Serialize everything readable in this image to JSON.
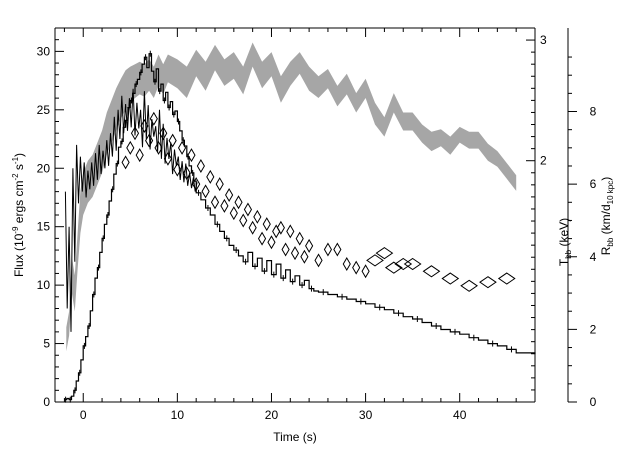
{
  "chart_data": {
    "type": "line",
    "title": "",
    "xlabel": "Time (s)",
    "ylabel_left": {
      "main": "Flux (10",
      "sup1": "-9",
      "mid": " ergs cm",
      "sup2": "-2",
      "mid2": " s",
      "sup3": "-1",
      "end": ")"
    },
    "ylabel_right1": {
      "main": "T",
      "sub": "bb",
      "end": " (keV)"
    },
    "ylabel_right2": {
      "main": "R",
      "sub": "bb",
      "mid": " (km/d",
      "sub2": "10 kpc",
      "end": ")"
    },
    "xlim": [
      -3,
      48
    ],
    "ylim_flux": [
      0,
      32
    ],
    "ylim_T": [
      0,
      3.1
    ],
    "ylim_R": [
      0,
      10.3
    ],
    "x_ticks": [
      0,
      10,
      20,
      30,
      40
    ],
    "x_tick_labels": [
      "0",
      "10",
      "20",
      "30",
      "40"
    ],
    "y_ticks_flux": [
      0,
      5,
      10,
      15,
      20,
      25,
      30
    ],
    "y_tick_labels_flux": [
      "0",
      "5",
      "10",
      "15",
      "20",
      "25",
      "30"
    ],
    "y_ticks_T": [
      2,
      3
    ],
    "y_tick_labels_T": [
      "2",
      "3"
    ],
    "y_ticks_R": [
      0,
      2,
      4,
      6,
      8
    ],
    "y_tick_labels_R": [
      "0",
      "2",
      "4",
      "6",
      "8"
    ],
    "series": [
      {
        "style": "histogram",
        "axis": "flux",
        "color": "#000000",
        "x": [
          -2,
          -1.75,
          -1.5,
          -1.25,
          -1.0,
          -0.75,
          -0.5,
          -0.25,
          0.0,
          0.25,
          0.5,
          0.75,
          1.0,
          1.25,
          1.5,
          1.75,
          2.0,
          2.25,
          2.5,
          2.75,
          3.0,
          3.25,
          3.5,
          3.75,
          4.0,
          4.25,
          4.5,
          4.75,
          5.0,
          5.25,
          5.5,
          5.75,
          6.0,
          6.25,
          6.5,
          6.75,
          7.0,
          7.25,
          7.5,
          7.75,
          8.0,
          8.25,
          8.5,
          8.75,
          9.0,
          9.25,
          9.5,
          9.75,
          10.0,
          10.25,
          10.5,
          10.75,
          11.0,
          11.25,
          11.5,
          11.75,
          12.0,
          12.5,
          13.0,
          13.5,
          14.0,
          14.5,
          15.0,
          15.5,
          16.0,
          16.5,
          17.0,
          17.5,
          18.0,
          18.5,
          19.0,
          19.5,
          20.0,
          20.5,
          21.0,
          21.5,
          22.0,
          22.5,
          23.0,
          23.5,
          24.0,
          24.5,
          25.0,
          26.0,
          27.0,
          28.0,
          29.0,
          30.0,
          31.0,
          32.0,
          33.0,
          34.0,
          35.0,
          36.0,
          37.0,
          38.0,
          39.0,
          40.0,
          41.0,
          42.0,
          43.0,
          44.0,
          45.0,
          46.0,
          48.0
        ],
        "y": [
          0.2,
          0.3,
          0.2,
          0.5,
          1.0,
          1.8,
          2.5,
          3.6,
          4.8,
          5.6,
          6.5,
          7.8,
          9.2,
          10.6,
          11.5,
          12.8,
          14.0,
          15.2,
          16.0,
          17.2,
          18.2,
          19.5,
          20.4,
          21.8,
          22.3,
          23.5,
          24.1,
          25.2,
          25.8,
          26.4,
          27.2,
          27.6,
          28.2,
          28.9,
          29.5,
          28.6,
          29.8,
          28.3,
          27.4,
          28.5,
          26.6,
          27.2,
          25.8,
          26.5,
          25.2,
          25.7,
          24.6,
          24.9,
          24.0,
          23.2,
          22.4,
          21.9,
          21.0,
          20.2,
          19.6,
          18.9,
          17.9,
          17.3,
          16.6,
          16.0,
          15.2,
          14.6,
          14.0,
          13.4,
          13.0,
          12.5,
          12.0,
          12.8,
          11.6,
          12.3,
          11.2,
          12.1,
          10.9,
          11.8,
          10.6,
          11.3,
          10.3,
          10.8,
          10.0,
          10.4,
          9.7,
          9.5,
          9.4,
          9.2,
          9.0,
          8.8,
          8.6,
          8.4,
          8.1,
          7.9,
          7.6,
          7.3,
          7.1,
          6.8,
          6.5,
          6.2,
          6.0,
          5.8,
          5.5,
          5.3,
          5.0,
          4.8,
          4.5,
          4.2,
          4.1
        ]
      },
      {
        "style": "jagged",
        "axis": "flux",
        "color": "#000000",
        "x": [
          -1.9,
          -1.7,
          -1.5,
          -1.3,
          -1.1,
          -0.9,
          -0.7,
          -0.5,
          -0.3,
          -0.1,
          0.1,
          0.3,
          0.5,
          0.7,
          0.9,
          1.1,
          1.3,
          1.5,
          1.7,
          1.9,
          2.1,
          2.3,
          2.5,
          2.7,
          2.9,
          3.1,
          3.3,
          3.5,
          3.7,
          3.9,
          4.1,
          4.3,
          4.5,
          4.7,
          4.9,
          5.1,
          5.3,
          5.5,
          5.7,
          5.9,
          6.1,
          6.3,
          6.5,
          6.7,
          6.9,
          7.1,
          7.3,
          7.5,
          7.7,
          7.9,
          8.1,
          8.3,
          8.5,
          8.7,
          8.9,
          9.1,
          9.3,
          9.5,
          9.7,
          9.9,
          10.1,
          10.3,
          10.5,
          10.7,
          10.9,
          11.1,
          11.3,
          11.5,
          11.7,
          11.9,
          12.1
        ],
        "y": [
          18.0,
          8.0,
          15.0,
          6.0,
          20.0,
          12.0,
          22.0,
          17.0,
          21.0,
          18.0,
          20.5,
          17.5,
          19.8,
          18.2,
          20.5,
          18.5,
          21.3,
          19.0,
          22.0,
          19.5,
          21.5,
          20.0,
          22.4,
          20.2,
          23.0,
          21.0,
          24.4,
          21.5,
          25.0,
          22.5,
          26.2,
          23.0,
          25.5,
          23.2,
          26.0,
          23.5,
          26.8,
          22.8,
          25.6,
          23.4,
          25.0,
          21.8,
          26.6,
          22.5,
          25.4,
          21.6,
          24.2,
          22.7,
          23.6,
          21.4,
          25.0,
          20.8,
          23.8,
          20.4,
          22.6,
          20.8,
          22.2,
          19.5,
          21.6,
          20.2,
          21.0,
          19.0,
          20.6,
          18.8,
          20.4,
          18.5,
          19.6,
          18.3,
          19.2,
          18.0,
          18.8
        ]
      },
      {
        "style": "band",
        "axis": "T",
        "color": "#a6a6a6",
        "x": [
          -1.8,
          -1.5,
          -1.2,
          -0.9,
          -0.6,
          -0.3,
          0.0,
          0.5,
          1.0,
          1.5,
          2.0,
          2.5,
          3.0,
          3.5,
          4.0,
          4.5,
          5.0,
          5.5,
          6.0,
          6.5,
          7.0,
          7.5,
          8.0,
          8.5,
          9.0,
          10.0,
          11.0,
          12.0,
          13.0,
          14.0,
          15.0,
          16.0,
          17.0,
          18.0,
          19.0,
          20.0,
          21.0,
          22.0,
          23.0,
          24.0,
          25.0,
          26.0,
          27.0,
          28.0,
          29.0,
          30.0,
          31.0,
          32.0,
          33.0,
          34.0,
          35.0,
          36.0,
          37.0,
          38.0,
          39.0,
          40.0,
          41.0,
          42.0,
          43.0,
          44.0,
          45.0,
          46.0
        ],
        "lower": [
          0.42,
          0.55,
          0.9,
          0.75,
          1.1,
          1.4,
          1.55,
          1.65,
          1.7,
          1.8,
          1.9,
          2.05,
          2.15,
          2.25,
          2.35,
          2.42,
          2.48,
          2.52,
          2.55,
          2.53,
          2.58,
          2.52,
          2.62,
          2.55,
          2.65,
          2.6,
          2.52,
          2.7,
          2.58,
          2.75,
          2.62,
          2.68,
          2.55,
          2.78,
          2.6,
          2.7,
          2.48,
          2.62,
          2.72,
          2.58,
          2.52,
          2.6,
          2.45,
          2.55,
          2.4,
          2.52,
          2.3,
          2.2,
          2.4,
          2.25,
          2.25,
          2.15,
          2.08,
          2.12,
          2.05,
          2.15,
          2.1,
          2.1,
          2.0,
          1.95,
          1.85,
          1.75
        ],
        "upper": [
          0.62,
          0.75,
          1.2,
          1.05,
          1.4,
          1.75,
          1.9,
          2.0,
          2.05,
          2.15,
          2.25,
          2.4,
          2.5,
          2.6,
          2.68,
          2.75,
          2.78,
          2.8,
          2.82,
          2.8,
          2.84,
          2.78,
          2.88,
          2.8,
          2.88,
          2.84,
          2.78,
          2.92,
          2.82,
          2.96,
          2.84,
          2.9,
          2.78,
          2.98,
          2.82,
          2.9,
          2.7,
          2.82,
          2.9,
          2.78,
          2.7,
          2.76,
          2.62,
          2.72,
          2.56,
          2.68,
          2.48,
          2.36,
          2.56,
          2.4,
          2.4,
          2.3,
          2.24,
          2.26,
          2.2,
          2.28,
          2.24,
          2.24,
          2.14,
          2.08,
          1.98,
          1.88
        ]
      },
      {
        "style": "diamonds",
        "axis": "R",
        "color": "#000000",
        "x": [
          4.5,
          5.0,
          5.5,
          6.0,
          6.5,
          7.0,
          7.5,
          8.0,
          8.5,
          9.0,
          9.5,
          10.0,
          10.5,
          11.0,
          11.5,
          12.0,
          12.5,
          13.0,
          13.5,
          14.0,
          14.5,
          15.0,
          15.5,
          16.0,
          16.5,
          17.0,
          17.5,
          18.0,
          18.5,
          19.0,
          19.5,
          20.0,
          20.5,
          21.0,
          21.5,
          22.0,
          22.5,
          23.0,
          23.5,
          24.0,
          25.0,
          26.0,
          27.0,
          28.0,
          29.0,
          30.0,
          31.0,
          32.0,
          33.0,
          34.0,
          35.0,
          37.0,
          39.0,
          41.0,
          43.0,
          45.0
        ],
        "y": [
          6.6,
          7.0,
          7.4,
          6.8,
          7.6,
          7.2,
          7.8,
          7.0,
          7.4,
          6.7,
          7.2,
          6.4,
          7.0,
          6.3,
          6.8,
          6.0,
          6.5,
          5.8,
          6.2,
          5.5,
          6.0,
          5.4,
          5.7,
          5.2,
          5.5,
          5.0,
          5.3,
          4.8,
          5.1,
          4.5,
          4.9,
          4.4,
          4.7,
          4.8,
          4.2,
          4.7,
          4.1,
          4.5,
          4.0,
          4.3,
          3.9,
          4.2,
          4.2,
          3.8,
          3.7,
          3.6,
          3.9,
          4.1,
          3.7,
          3.8,
          3.8,
          3.6,
          3.4,
          3.2,
          3.3,
          3.4
        ]
      }
    ]
  }
}
